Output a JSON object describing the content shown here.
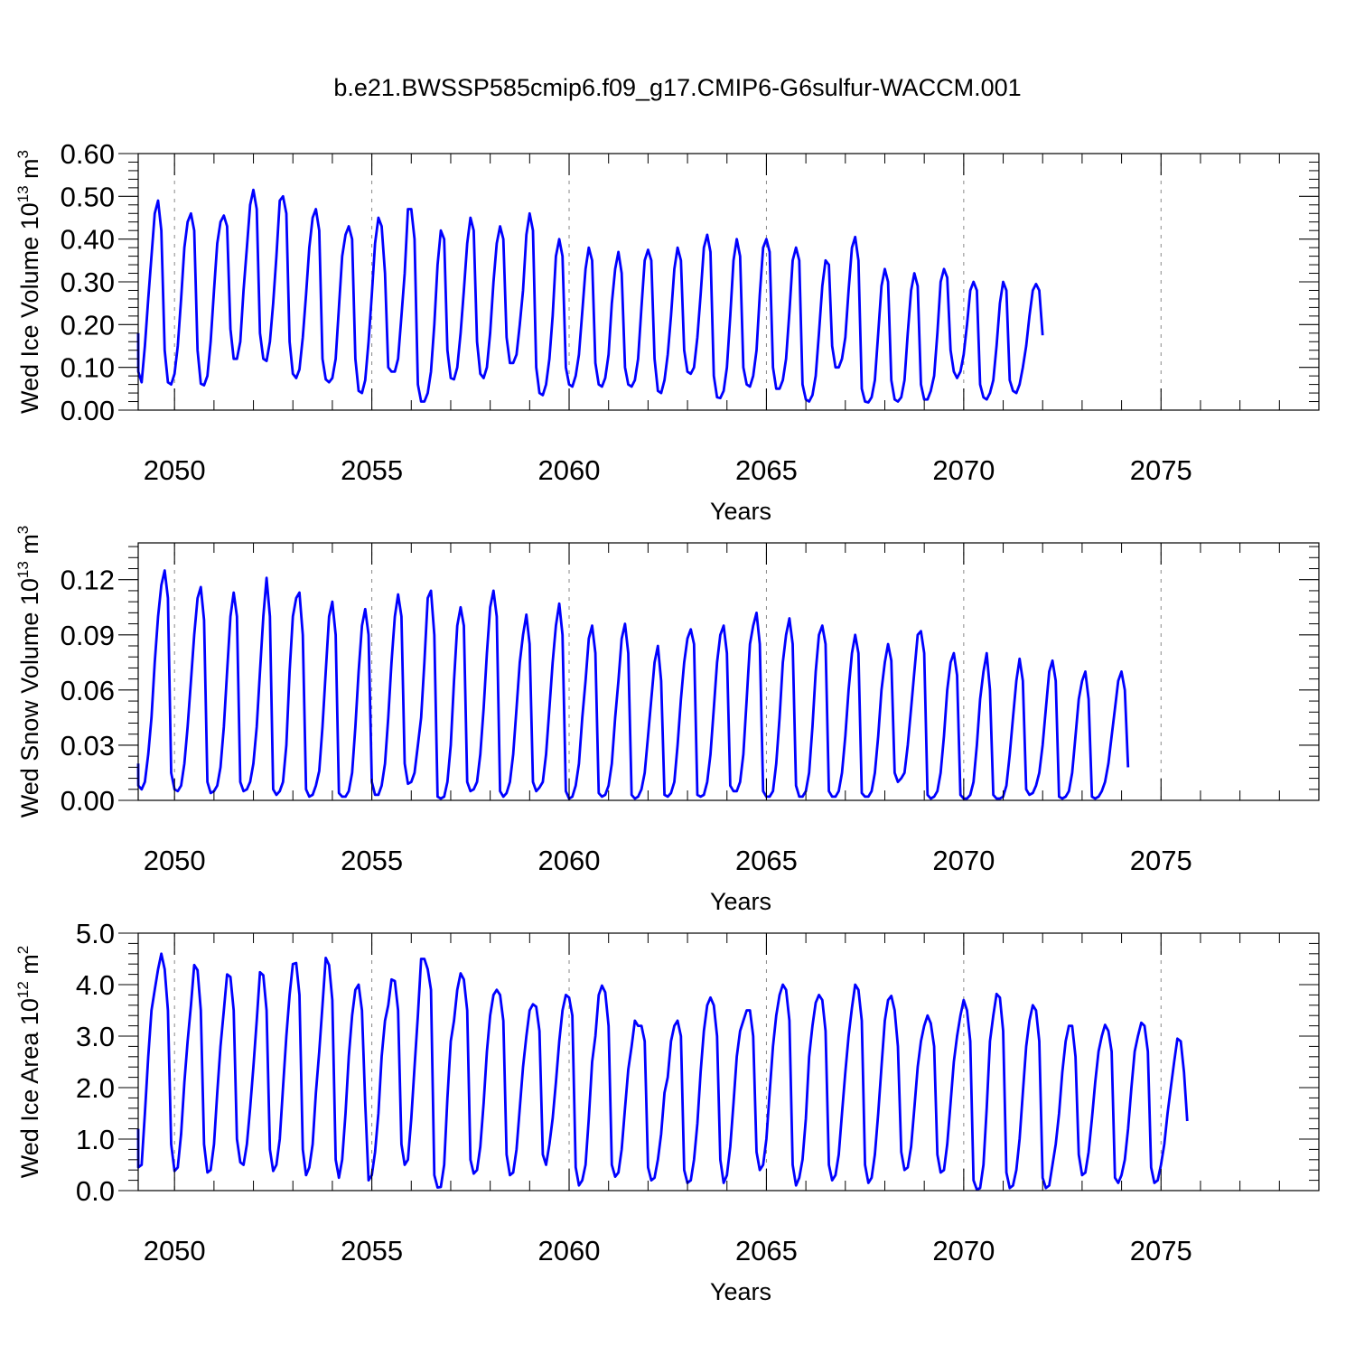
{
  "title": "b.e21.BWSSP585cmip6.f09_g17.CMIP6-G6sulfur-WACCM.001",
  "line_color": "#0000ff",
  "chart_data": [
    {
      "type": "line",
      "ylabel_main": "Wed Ice Volume 10",
      "ylabel_exp": "13",
      "ylabel_unit": " m",
      "ylabel_unit_exp": "3",
      "xlabel": "Years",
      "xlim": [
        2049.08,
        2079.0
      ],
      "ylim": [
        0.0,
        0.6
      ],
      "yticks": [
        0.0,
        0.1,
        0.2,
        0.3,
        0.4,
        0.5,
        0.6
      ],
      "yticklabels": [
        "0.00",
        "0.10",
        "0.20",
        "0.30",
        "0.40",
        "0.50",
        "0.60"
      ],
      "xticks": [
        2050,
        2055,
        2060,
        2065,
        2070,
        2075
      ],
      "xticklabels": [
        "2050",
        "2055",
        "2060",
        "2065",
        "2070",
        "2075"
      ],
      "x_start": 2049.0,
      "x_step": 0.08333,
      "series": [
        {
          "values": [
            0.18,
            0.09,
            0.065,
            0.15,
            0.26,
            0.36,
            0.46,
            0.49,
            0.42,
            0.14,
            0.065,
            0.06,
            0.085,
            0.15,
            0.26,
            0.38,
            0.44,
            0.46,
            0.42,
            0.14,
            0.062,
            0.058,
            0.08,
            0.16,
            0.28,
            0.39,
            0.44,
            0.455,
            0.43,
            0.19,
            0.12,
            0.12,
            0.16,
            0.28,
            0.38,
            0.48,
            0.515,
            0.47,
            0.18,
            0.12,
            0.115,
            0.16,
            0.25,
            0.36,
            0.49,
            0.5,
            0.46,
            0.16,
            0.085,
            0.075,
            0.095,
            0.17,
            0.27,
            0.38,
            0.45,
            0.47,
            0.42,
            0.12,
            0.072,
            0.065,
            0.075,
            0.12,
            0.24,
            0.36,
            0.41,
            0.43,
            0.4,
            0.12,
            0.045,
            0.04,
            0.07,
            0.16,
            0.27,
            0.39,
            0.45,
            0.43,
            0.32,
            0.1,
            0.09,
            0.09,
            0.12,
            0.22,
            0.32,
            0.47,
            0.47,
            0.4,
            0.06,
            0.02,
            0.02,
            0.04,
            0.09,
            0.2,
            0.34,
            0.42,
            0.4,
            0.14,
            0.075,
            0.072,
            0.1,
            0.18,
            0.28,
            0.39,
            0.45,
            0.42,
            0.16,
            0.085,
            0.075,
            0.1,
            0.18,
            0.3,
            0.39,
            0.43,
            0.4,
            0.17,
            0.11,
            0.11,
            0.13,
            0.2,
            0.28,
            0.41,
            0.46,
            0.42,
            0.1,
            0.04,
            0.035,
            0.06,
            0.12,
            0.22,
            0.36,
            0.4,
            0.36,
            0.1,
            0.06,
            0.055,
            0.08,
            0.13,
            0.23,
            0.33,
            0.38,
            0.35,
            0.11,
            0.06,
            0.055,
            0.075,
            0.13,
            0.25,
            0.33,
            0.37,
            0.32,
            0.1,
            0.06,
            0.055,
            0.07,
            0.12,
            0.24,
            0.35,
            0.375,
            0.35,
            0.12,
            0.045,
            0.04,
            0.07,
            0.13,
            0.22,
            0.33,
            0.38,
            0.35,
            0.14,
            0.09,
            0.085,
            0.1,
            0.17,
            0.27,
            0.38,
            0.41,
            0.37,
            0.08,
            0.03,
            0.028,
            0.045,
            0.1,
            0.22,
            0.35,
            0.4,
            0.36,
            0.1,
            0.06,
            0.055,
            0.08,
            0.14,
            0.27,
            0.38,
            0.4,
            0.37,
            0.1,
            0.05,
            0.05,
            0.07,
            0.12,
            0.23,
            0.35,
            0.38,
            0.35,
            0.06,
            0.025,
            0.02,
            0.035,
            0.08,
            0.18,
            0.29,
            0.35,
            0.34,
            0.15,
            0.1,
            0.1,
            0.12,
            0.17,
            0.28,
            0.38,
            0.405,
            0.35,
            0.05,
            0.02,
            0.018,
            0.03,
            0.07,
            0.18,
            0.29,
            0.33,
            0.3,
            0.07,
            0.025,
            0.02,
            0.03,
            0.07,
            0.18,
            0.28,
            0.32,
            0.29,
            0.06,
            0.025,
            0.025,
            0.045,
            0.08,
            0.18,
            0.3,
            0.33,
            0.31,
            0.14,
            0.09,
            0.075,
            0.09,
            0.13,
            0.2,
            0.28,
            0.3,
            0.28,
            0.06,
            0.03,
            0.025,
            0.04,
            0.07,
            0.15,
            0.25,
            0.3,
            0.28,
            0.07,
            0.045,
            0.04,
            0.06,
            0.1,
            0.15,
            0.22,
            0.28,
            0.295,
            0.28,
            0.175
          ]
        }
      ]
    },
    {
      "type": "line",
      "ylabel_main": "Wed Snow Volume 10",
      "ylabel_exp": "13",
      "ylabel_unit": " m",
      "ylabel_unit_exp": "3",
      "xlabel": "Years",
      "xlim": [
        2049.08,
        2079.0
      ],
      "ylim": [
        0.0,
        0.14
      ],
      "yticks": [
        0.0,
        0.03,
        0.06,
        0.09,
        0.12
      ],
      "yticklabels": [
        "0.00",
        "0.03",
        "0.06",
        "0.09",
        "0.12"
      ],
      "xticks": [
        2050,
        2055,
        2060,
        2065,
        2070,
        2075
      ],
      "xticklabels": [
        "2050",
        "2055",
        "2060",
        "2065",
        "2070",
        "2075"
      ],
      "x_start": 2049.0,
      "x_step": 0.08333,
      "series": [
        {
          "values": [
            0.02,
            0.008,
            0.006,
            0.01,
            0.025,
            0.045,
            0.075,
            0.1,
            0.117,
            0.125,
            0.11,
            0.015,
            0.006,
            0.005,
            0.008,
            0.02,
            0.04,
            0.065,
            0.09,
            0.11,
            0.116,
            0.098,
            0.01,
            0.004,
            0.005,
            0.008,
            0.018,
            0.04,
            0.07,
            0.1,
            0.113,
            0.1,
            0.01,
            0.005,
            0.006,
            0.01,
            0.02,
            0.04,
            0.07,
            0.1,
            0.121,
            0.1,
            0.006,
            0.003,
            0.005,
            0.01,
            0.03,
            0.07,
            0.1,
            0.11,
            0.113,
            0.09,
            0.006,
            0.002,
            0.003,
            0.008,
            0.016,
            0.04,
            0.07,
            0.1,
            0.108,
            0.09,
            0.004,
            0.002,
            0.002,
            0.005,
            0.015,
            0.04,
            0.07,
            0.095,
            0.104,
            0.09,
            0.01,
            0.003,
            0.003,
            0.008,
            0.02,
            0.045,
            0.075,
            0.1,
            0.112,
            0.1,
            0.02,
            0.009,
            0.01,
            0.015,
            0.03,
            0.045,
            0.075,
            0.11,
            0.114,
            0.09,
            0.002,
            0.001,
            0.002,
            0.01,
            0.03,
            0.065,
            0.095,
            0.105,
            0.095,
            0.01,
            0.005,
            0.006,
            0.01,
            0.025,
            0.05,
            0.08,
            0.105,
            0.114,
            0.1,
            0.005,
            0.002,
            0.004,
            0.01,
            0.025,
            0.05,
            0.075,
            0.09,
            0.101,
            0.085,
            0.01,
            0.005,
            0.007,
            0.01,
            0.025,
            0.05,
            0.075,
            0.095,
            0.107,
            0.09,
            0.005,
            0.001,
            0.002,
            0.008,
            0.02,
            0.045,
            0.065,
            0.088,
            0.095,
            0.08,
            0.004,
            0.002,
            0.003,
            0.008,
            0.02,
            0.045,
            0.065,
            0.088,
            0.096,
            0.08,
            0.003,
            0.001,
            0.002,
            0.006,
            0.015,
            0.035,
            0.055,
            0.075,
            0.084,
            0.065,
            0.003,
            0.002,
            0.004,
            0.01,
            0.03,
            0.055,
            0.075,
            0.088,
            0.093,
            0.085,
            0.003,
            0.002,
            0.003,
            0.01,
            0.025,
            0.05,
            0.075,
            0.09,
            0.095,
            0.08,
            0.008,
            0.005,
            0.005,
            0.01,
            0.025,
            0.055,
            0.085,
            0.095,
            0.102,
            0.085,
            0.005,
            0.002,
            0.002,
            0.005,
            0.02,
            0.045,
            0.075,
            0.09,
            0.099,
            0.085,
            0.008,
            0.002,
            0.002,
            0.005,
            0.015,
            0.04,
            0.07,
            0.09,
            0.095,
            0.085,
            0.005,
            0.002,
            0.002,
            0.005,
            0.015,
            0.035,
            0.06,
            0.08,
            0.09,
            0.08,
            0.004,
            0.002,
            0.002,
            0.005,
            0.015,
            0.035,
            0.06,
            0.075,
            0.085,
            0.076,
            0.015,
            0.01,
            0.012,
            0.015,
            0.03,
            0.05,
            0.07,
            0.09,
            0.092,
            0.08,
            0.003,
            0.001,
            0.002,
            0.005,
            0.015,
            0.035,
            0.06,
            0.075,
            0.08,
            0.068,
            0.003,
            0.001,
            0.001,
            0.003,
            0.01,
            0.03,
            0.055,
            0.07,
            0.08,
            0.06,
            0.003,
            0.001,
            0.001,
            0.002,
            0.008,
            0.025,
            0.045,
            0.065,
            0.077,
            0.065,
            0.006,
            0.003,
            0.004,
            0.008,
            0.015,
            0.03,
            0.05,
            0.07,
            0.076,
            0.065,
            0.002,
            0.001,
            0.002,
            0.005,
            0.015,
            0.035,
            0.055,
            0.065,
            0.07,
            0.055,
            0.002,
            0.001,
            0.002,
            0.005,
            0.01,
            0.02,
            0.035,
            0.05,
            0.065,
            0.07,
            0.06,
            0.018
          ]
        }
      ]
    },
    {
      "type": "line",
      "ylabel_main": "Wed Ice Area 10",
      "ylabel_exp": "12",
      "ylabel_unit": " m",
      "ylabel_unit_exp": "2",
      "xlabel": "Years",
      "xlim": [
        2049.08,
        2079.0
      ],
      "ylim": [
        0.0,
        5.0
      ],
      "yticks": [
        0.0,
        1.0,
        2.0,
        3.0,
        4.0,
        5.0
      ],
      "yticklabels": [
        "0.0",
        "1.0",
        "2.0",
        "3.0",
        "4.0",
        "5.0"
      ],
      "xticks": [
        2050,
        2055,
        2060,
        2065,
        2070,
        2075
      ],
      "xticklabels": [
        "2050",
        "2055",
        "2060",
        "2065",
        "2070",
        "2075"
      ],
      "x_start": 2049.0,
      "x_step": 0.08333,
      "series": [
        {
          "values": [
            1.2,
            0.45,
            0.5,
            1.5,
            2.6,
            3.5,
            3.9,
            4.3,
            4.6,
            4.3,
            3.5,
            0.9,
            0.38,
            0.45,
            1.1,
            2.1,
            2.9,
            3.6,
            4.38,
            4.28,
            3.5,
            0.9,
            0.35,
            0.4,
            0.9,
            1.9,
            2.8,
            3.5,
            4.2,
            4.15,
            3.5,
            1.0,
            0.55,
            0.5,
            0.9,
            1.6,
            2.4,
            3.3,
            4.24,
            4.18,
            3.5,
            0.8,
            0.38,
            0.5,
            1.0,
            2.0,
            3.0,
            3.8,
            4.4,
            4.42,
            3.8,
            0.8,
            0.3,
            0.45,
            0.9,
            1.9,
            2.7,
            3.6,
            4.52,
            4.38,
            3.7,
            0.6,
            0.25,
            0.6,
            1.5,
            2.6,
            3.4,
            3.9,
            4.0,
            3.5,
            1.7,
            0.2,
            0.3,
            0.75,
            1.5,
            2.6,
            3.3,
            3.6,
            4.1,
            4.07,
            3.5,
            0.9,
            0.5,
            0.6,
            1.4,
            2.4,
            3.4,
            4.5,
            4.5,
            4.3,
            3.9,
            0.3,
            0.06,
            0.07,
            0.5,
            1.8,
            2.9,
            3.3,
            3.9,
            4.22,
            4.1,
            3.5,
            0.6,
            0.33,
            0.4,
            0.85,
            1.7,
            2.7,
            3.4,
            3.8,
            3.9,
            3.8,
            3.3,
            0.7,
            0.3,
            0.35,
            0.8,
            1.6,
            2.4,
            3.0,
            3.5,
            3.62,
            3.57,
            3.1,
            0.7,
            0.5,
            0.9,
            1.4,
            2.1,
            2.9,
            3.5,
            3.8,
            3.75,
            3.4,
            0.45,
            0.1,
            0.2,
            0.5,
            1.4,
            2.5,
            3.0,
            3.8,
            3.98,
            3.85,
            3.2,
            0.5,
            0.27,
            0.35,
            0.8,
            1.6,
            2.35,
            2.8,
            3.3,
            3.2,
            3.2,
            2.9,
            0.45,
            0.2,
            0.25,
            0.6,
            1.1,
            1.9,
            2.2,
            2.9,
            3.2,
            3.3,
            3.0,
            0.4,
            0.15,
            0.2,
            0.6,
            1.3,
            2.3,
            3.1,
            3.6,
            3.75,
            3.6,
            3.0,
            0.6,
            0.15,
            0.3,
            0.85,
            1.7,
            2.6,
            3.1,
            3.3,
            3.5,
            3.5,
            3.0,
            0.75,
            0.4,
            0.5,
            1.0,
            1.9,
            2.8,
            3.4,
            3.8,
            4.0,
            3.9,
            3.3,
            0.5,
            0.1,
            0.25,
            0.6,
            1.4,
            2.6,
            3.2,
            3.65,
            3.8,
            3.7,
            3.1,
            0.5,
            0.2,
            0.3,
            0.7,
            1.5,
            2.3,
            3.0,
            3.55,
            4.0,
            3.9,
            3.3,
            0.5,
            0.15,
            0.25,
            0.7,
            1.5,
            2.4,
            3.3,
            3.7,
            3.78,
            3.5,
            2.8,
            0.75,
            0.4,
            0.45,
            0.85,
            1.6,
            2.4,
            2.9,
            3.2,
            3.4,
            3.25,
            2.8,
            0.7,
            0.35,
            0.4,
            0.9,
            1.7,
            2.5,
            3.0,
            3.4,
            3.7,
            3.5,
            2.9,
            0.2,
            0.02,
            0.05,
            0.5,
            1.6,
            2.9,
            3.4,
            3.82,
            3.75,
            3.1,
            0.35,
            0.05,
            0.1,
            0.4,
            1.0,
            1.9,
            2.8,
            3.3,
            3.6,
            3.5,
            2.9,
            0.25,
            0.05,
            0.1,
            0.5,
            0.9,
            1.5,
            2.3,
            2.9,
            3.2,
            3.2,
            2.6,
            0.7,
            0.3,
            0.35,
            0.75,
            1.4,
            2.1,
            2.7,
            3.0,
            3.22,
            3.1,
            2.7,
            0.25,
            0.15,
            0.3,
            0.6,
            1.2,
            2.0,
            2.7,
            3.0,
            3.26,
            3.2,
            2.7,
            0.45,
            0.15,
            0.2,
            0.5,
            0.9,
            1.5,
            2.0,
            2.5,
            2.95,
            2.9,
            2.3,
            1.35
          ]
        }
      ]
    }
  ]
}
